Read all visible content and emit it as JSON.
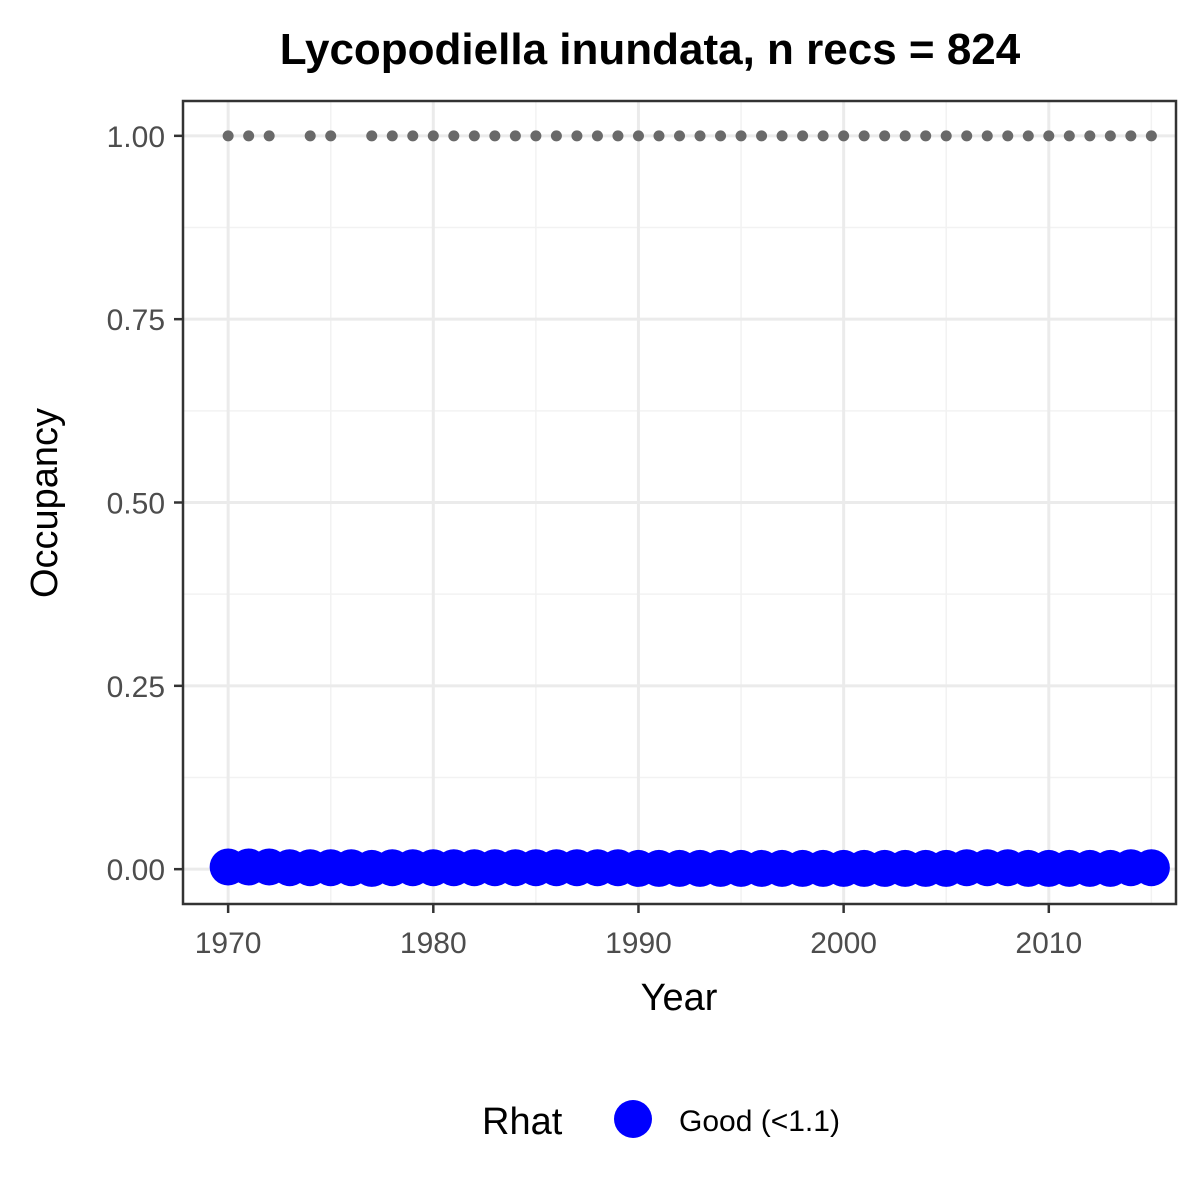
{
  "chart_data": {
    "type": "scatter",
    "title": "Lycopodiella inundata, n recs = 824",
    "xlabel": "Year",
    "ylabel": "Occupancy",
    "xlim": [
      1967.8,
      2016.2
    ],
    "ylim": [
      -0.0475,
      1.0475
    ],
    "x_ticks": [
      1970,
      1980,
      1990,
      2000,
      2010
    ],
    "x_tick_labels": [
      "1970",
      "1980",
      "1990",
      "2000",
      "2010"
    ],
    "y_ticks": [
      0,
      0.25,
      0.5,
      0.75,
      1
    ],
    "y_tick_labels": [
      "0.00",
      "0.25",
      "0.50",
      "0.75",
      "1.00"
    ],
    "grid": true,
    "legend": {
      "title": "Rhat",
      "position": "bottom",
      "entries": [
        {
          "label": "Good (<1.1)",
          "color": "#0000ff"
        }
      ]
    },
    "series": [
      {
        "name": "Good (<1.1)",
        "color": "#0000ff",
        "marker": "large-circle",
        "x": [
          1970,
          1971,
          1972,
          1973,
          1974,
          1975,
          1976,
          1977,
          1978,
          1979,
          1980,
          1981,
          1982,
          1983,
          1984,
          1985,
          1986,
          1987,
          1988,
          1989,
          1990,
          1991,
          1992,
          1993,
          1994,
          1995,
          1996,
          1997,
          1998,
          1999,
          2000,
          2001,
          2002,
          2003,
          2004,
          2005,
          2006,
          2007,
          2008,
          2009,
          2010,
          2011,
          2012,
          2013,
          2014,
          2015
        ],
        "y": [
          0.003,
          0.003,
          0.003,
          0.002,
          0.002,
          0.002,
          0.002,
          0.001,
          0.002,
          0.002,
          0.002,
          0.002,
          0.002,
          0.002,
          0.002,
          0.002,
          0.002,
          0.002,
          0.002,
          0.002,
          0.001,
          0.001,
          0.001,
          0.001,
          0.001,
          0.001,
          0.001,
          0.001,
          0.001,
          0.001,
          0.001,
          0.001,
          0.001,
          0.001,
          0.001,
          0.001,
          0.002,
          0.002,
          0.002,
          0.001,
          0.001,
          0.001,
          0.001,
          0.001,
          0.002,
          0.002
        ]
      },
      {
        "color": "#696969",
        "marker": "small-dot",
        "x": [
          1970,
          1971,
          1972,
          1974,
          1975,
          1977,
          1978,
          1979,
          1980,
          1981,
          1982,
          1983,
          1984,
          1985,
          1986,
          1987,
          1988,
          1989,
          1990,
          1991,
          1992,
          1993,
          1994,
          1995,
          1996,
          1997,
          1998,
          1999,
          2000,
          2001,
          2002,
          2003,
          2004,
          2005,
          2006,
          2007,
          2008,
          2009,
          2010,
          2011,
          2012,
          2013,
          2014,
          2015
        ],
        "y": [
          1,
          1,
          1,
          1,
          1,
          1,
          1,
          1,
          1,
          1,
          1,
          1,
          1,
          1,
          1,
          1,
          1,
          1,
          1,
          1,
          1,
          1,
          1,
          1,
          1,
          1,
          1,
          1,
          1,
          1,
          1,
          1,
          1,
          1,
          1,
          1,
          1,
          1,
          1,
          1,
          1,
          1,
          1,
          1
        ]
      }
    ]
  }
}
